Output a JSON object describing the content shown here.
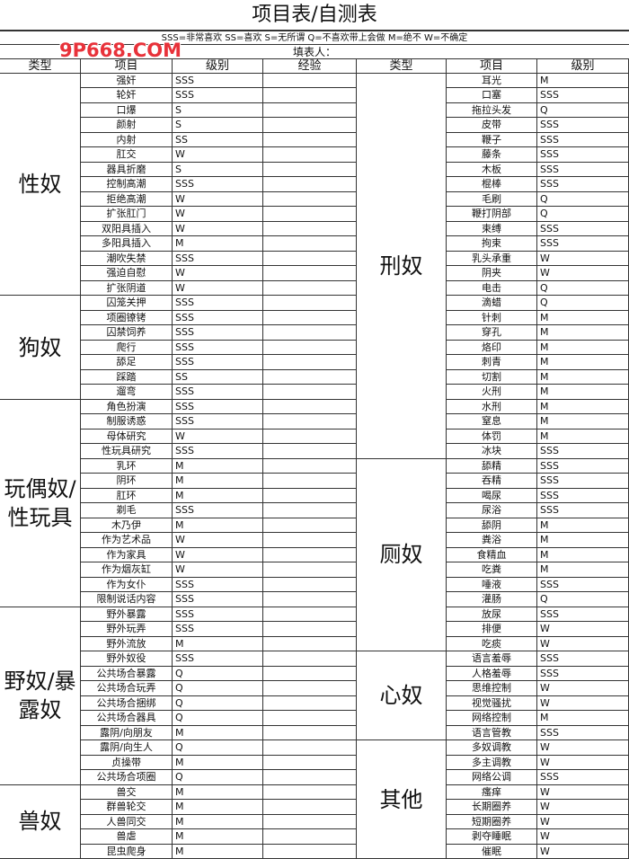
{
  "header": {
    "title": "项目表/自测表",
    "legend": "SSS=非常喜欢 SS=喜欢 S=无所谓 Q=不喜欢带上会做 M=绝不 W=不确定",
    "filler_label": "填表人：",
    "watermark": "9P668.COM"
  },
  "left_headers": [
    "类型",
    "项目",
    "级别",
    "经验"
  ],
  "right_headers": [
    "类型",
    "项目",
    "级别"
  ],
  "left_groups": [
    {
      "type": "性奴",
      "items": [
        [
          "强奸",
          "SSS"
        ],
        [
          "轮奸",
          "SSS"
        ],
        [
          "口爆",
          "S"
        ],
        [
          "颜射",
          "S"
        ],
        [
          "内射",
          "SS"
        ],
        [
          "肛交",
          "W"
        ],
        [
          "器具折磨",
          "S"
        ],
        [
          "控制高潮",
          "SSS"
        ],
        [
          "拒绝高潮",
          "W"
        ],
        [
          "扩张肛门",
          "W"
        ],
        [
          "双阳具插入",
          "W"
        ],
        [
          "多阳具插入",
          "M"
        ],
        [
          "潮吹失禁",
          "SSS"
        ],
        [
          "强迫自慰",
          "W"
        ],
        [
          "扩张阴道",
          "W"
        ]
      ]
    },
    {
      "type": "狗奴",
      "items": [
        [
          "囚笼关押",
          "SSS"
        ],
        [
          "项圈镣铐",
          "SSS"
        ],
        [
          "囚禁饲养",
          "SSS"
        ],
        [
          "爬行",
          "SSS"
        ],
        [
          "舔足",
          "SSS"
        ],
        [
          "踩踏",
          "SS"
        ],
        [
          "遛弯",
          "SSS"
        ]
      ]
    },
    {
      "type": "玩偶奴/性玩具",
      "items": [
        [
          "角色扮演",
          "SSS"
        ],
        [
          "制服诱惑",
          "SSS"
        ],
        [
          "母体研究",
          "W"
        ],
        [
          "性玩具研究",
          "SSS"
        ],
        [
          "乳环",
          "M"
        ],
        [
          "阴环",
          "M"
        ],
        [
          "肛环",
          "M"
        ],
        [
          "剃毛",
          "SSS"
        ],
        [
          "木乃伊",
          "M"
        ],
        [
          "作为艺术品",
          "W"
        ],
        [
          "作为家具",
          "W"
        ],
        [
          "作为烟灰缸",
          "W"
        ],
        [
          "作为女仆",
          "SSS"
        ],
        [
          "限制说话内容",
          "SSS"
        ]
      ]
    },
    {
      "type": "野奴/暴露奴",
      "items": [
        [
          "野外暴露",
          "SSS"
        ],
        [
          "野外玩弄",
          "SSS"
        ],
        [
          "野外流放",
          "M"
        ],
        [
          "野外奴役",
          "SSS"
        ],
        [
          "公共场合暴露",
          "Q"
        ],
        [
          "公共场合玩弄",
          "Q"
        ],
        [
          "公共场合捆绑",
          "Q"
        ],
        [
          "公共场合器具",
          "Q"
        ],
        [
          "露阴/向朋友",
          "M"
        ],
        [
          "露阴/向生人",
          "Q"
        ],
        [
          "贞操带",
          "M"
        ],
        [
          "公共场合项圈",
          "Q"
        ]
      ]
    },
    {
      "type": "兽奴",
      "items": [
        [
          "兽交",
          "M"
        ],
        [
          "群兽轮交",
          "M"
        ],
        [
          "人兽同交",
          "M"
        ],
        [
          "兽虐",
          "M"
        ],
        [
          "昆虫爬身",
          "M"
        ]
      ]
    }
  ],
  "right_groups": [
    {
      "type": "刑奴",
      "items": [
        [
          "耳光",
          "M"
        ],
        [
          "口塞",
          "SSS"
        ],
        [
          "拖拉头发",
          "Q"
        ],
        [
          "皮带",
          "SSS"
        ],
        [
          "鞭子",
          "SSS"
        ],
        [
          "藤条",
          "SSS"
        ],
        [
          "木板",
          "SSS"
        ],
        [
          "棍棒",
          "SSS"
        ],
        [
          "毛刷",
          "Q"
        ],
        [
          "鞭打阴部",
          "Q"
        ],
        [
          "束缚",
          "SSS"
        ],
        [
          "拘束",
          "SSS"
        ],
        [
          "乳头承重",
          "W"
        ],
        [
          "阴夹",
          "W"
        ],
        [
          "电击",
          "Q"
        ],
        [
          "滴蜡",
          "Q"
        ],
        [
          "针刺",
          "M"
        ],
        [
          "穿孔",
          "M"
        ],
        [
          "烙印",
          "M"
        ],
        [
          "刺青",
          "M"
        ],
        [
          "切割",
          "M"
        ],
        [
          "火刑",
          "M"
        ],
        [
          "水刑",
          "M"
        ],
        [
          "窒息",
          "M"
        ],
        [
          "体罚",
          "M"
        ],
        [
          "冰块",
          "SSS"
        ]
      ]
    },
    {
      "type": "厕奴",
      "items": [
        [
          "舔精",
          "SSS"
        ],
        [
          "吞精",
          "SSS"
        ],
        [
          "喝尿",
          "SSS"
        ],
        [
          "尿浴",
          "SSS"
        ],
        [
          "舔阴",
          "M"
        ],
        [
          "粪浴",
          "M"
        ],
        [
          "食精血",
          "M"
        ],
        [
          "吃粪",
          "M"
        ],
        [
          "唾液",
          "SSS"
        ],
        [
          "灌肠",
          "Q"
        ],
        [
          "放尿",
          "SSS"
        ],
        [
          "排便",
          "W"
        ],
        [
          "吃痰",
          "W"
        ]
      ]
    },
    {
      "type": "心奴",
      "items": [
        [
          "语言羞辱",
          "SSS"
        ],
        [
          "人格羞辱",
          "SSS"
        ],
        [
          "思维控制",
          "W"
        ],
        [
          "视觉骚扰",
          "W"
        ],
        [
          "网络控制",
          "M"
        ],
        [
          "语言管教",
          "SSS"
        ]
      ]
    },
    {
      "type": "其他",
      "items": [
        [
          "多奴调教",
          "W"
        ],
        [
          "多主调教",
          "W"
        ],
        [
          "网络公调",
          "SSS"
        ],
        [
          "瘙痒",
          "W"
        ],
        [
          "长期圈养",
          "W"
        ],
        [
          "短期圈养",
          "W"
        ],
        [
          "剥夺睡眠",
          "W"
        ],
        [
          "催眠",
          "W"
        ]
      ]
    }
  ]
}
